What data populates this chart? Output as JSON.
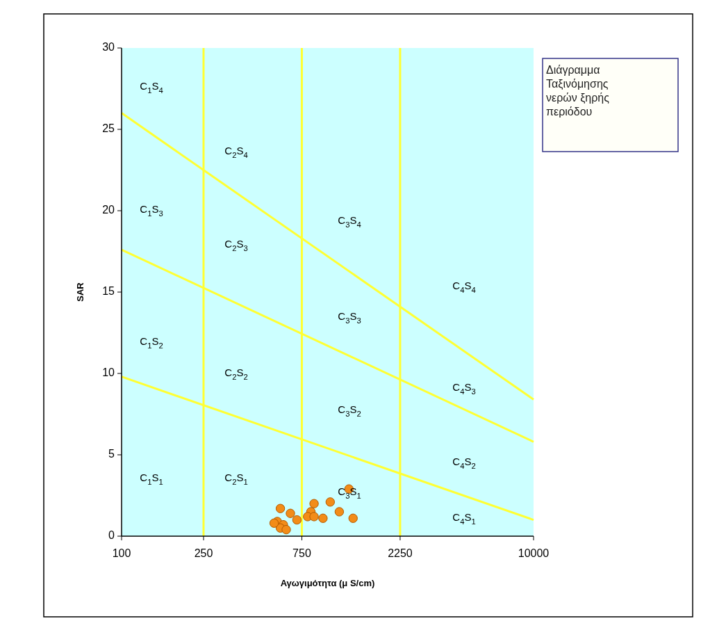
{
  "chart_data": {
    "type": "scatter",
    "xlabel": "Αγωγιμότητα (μ S/cm)",
    "ylabel": "SAR",
    "log": "x",
    "xlim": [
      100,
      10000
    ],
    "xticks": [
      100,
      250,
      750,
      2250,
      10000
    ],
    "ylim": [
      0,
      30
    ],
    "yticks": [
      0,
      5,
      10,
      15,
      20,
      25,
      30
    ],
    "ref_lines": [
      {
        "axis": "x",
        "value": 250,
        "color": "#ffff33"
      },
      {
        "axis": "x",
        "value": 750,
        "color": "#ffff33"
      },
      {
        "axis": "x",
        "value": 2250,
        "color": "#ffff33"
      }
    ],
    "series": [
      {
        "type": "line",
        "color": "#ffff33",
        "marker": "none",
        "x": [
          100,
          10000
        ],
        "values": [
          9.8,
          1.0
        ]
      },
      {
        "type": "line",
        "color": "#ffff33",
        "marker": "none",
        "x": [
          100,
          10000
        ],
        "values": [
          17.6,
          5.8
        ]
      },
      {
        "type": "line",
        "color": "#ffff33",
        "marker": "none",
        "x": [
          100,
          10000
        ],
        "values": [
          26,
          8.4
        ]
      },
      {
        "type": "scatter",
        "color": "#f28c18",
        "marker": "circle",
        "x": [
          590,
          660,
          710,
          570,
          610,
          590,
          630,
          860,
          830,
          800,
          860,
          950,
          1030,
          1140,
          1330,
          1270,
          550
        ],
        "values": [
          1.7,
          1.4,
          1.0,
          0.9,
          0.7,
          0.5,
          0.4,
          2.0,
          1.5,
          1.2,
          1.2,
          1.1,
          2.1,
          1.5,
          1.1,
          2.9,
          0.8
        ]
      }
    ],
    "annotations": [
      "C$_{1}$S$_{4}$",
      "C$_{2}$S$_{4}$",
      "C$_{1}$S$_{3}$",
      "C$_{2}$S$_{3}$",
      "C$_{3}$S$_{4}$",
      "C$_{1}$S$_{2}$",
      "C$_{2}$S$_{2}$",
      "C$_{3}$S$_{3}$",
      "C$_{4}$S$_{4}$",
      "C$_{4}$S$_{3}$",
      "C$_{3}$S$_{2}$",
      "C$_{4}$S$_{2}$",
      "C$_{1}$S$_{1}$",
      "C$_{2}$S$_{1}$",
      "C$_{3}$S$_{1}$",
      "C$_{4}$S$_{1}$",
      "Διάγραμμα Ταξινόμησης νερών ξηρής περιόδου"
    ]
  }
}
